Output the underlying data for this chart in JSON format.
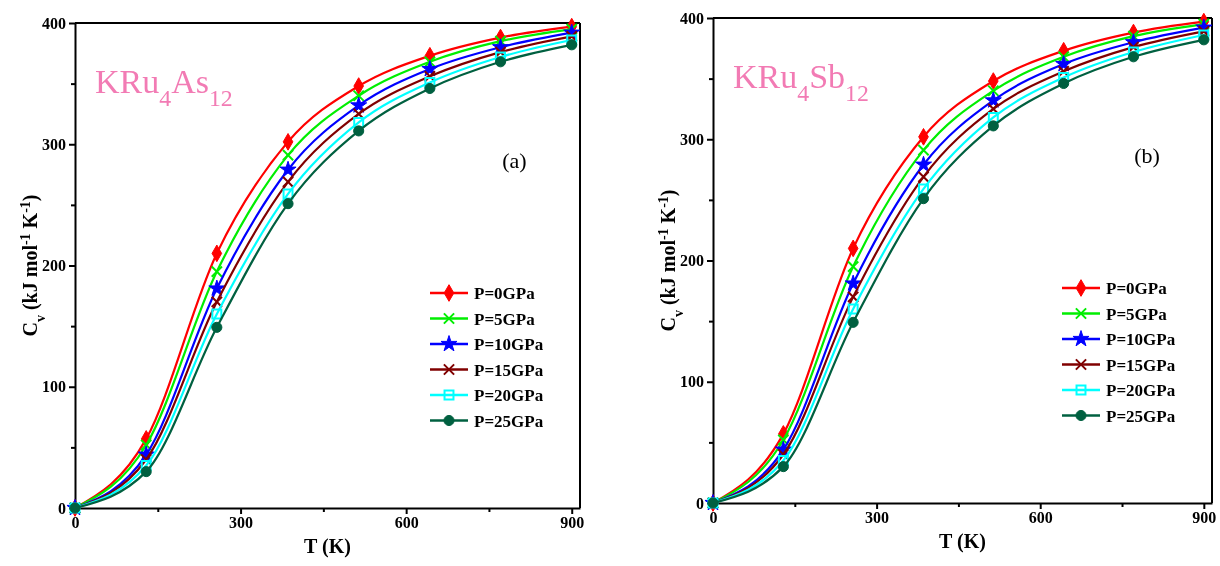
{
  "chart_data": [
    {
      "type": "line",
      "xlabel": "T (K)",
      "ylabel": "C$_{v}$ (kJ mol$^{-1}$ K$^{-1}$)",
      "annotations": [
        "KRu$_{4}$As$_{12}$",
        "(a)"
      ],
      "x": [
        0,
        129,
        257,
        386,
        514,
        643,
        771,
        900
      ],
      "series": [
        {
          "name": "P=0GPa",
          "color": "#ff0000",
          "marker": "diamond",
          "values": [
            0,
            57,
            210,
            302,
            348,
            373,
            388,
            397
          ]
        },
        {
          "name": "P=5GPa",
          "color": "#00ee00",
          "marker": "cross",
          "values": [
            0,
            52,
            195,
            291,
            340,
            368,
            385,
            395
          ]
        },
        {
          "name": "P=10GPa",
          "color": "#0000ff",
          "marker": "star",
          "values": [
            0,
            44,
            181,
            279,
            332,
            362,
            380,
            392
          ]
        },
        {
          "name": "P=15GPa",
          "color": "#800000",
          "marker": "cross",
          "values": [
            0,
            40,
            170,
            269,
            325,
            356,
            376,
            389
          ]
        },
        {
          "name": "P=20GPa",
          "color": "#00ffff",
          "marker": "square",
          "values": [
            0,
            35,
            160,
            259,
            318,
            351,
            372,
            386
          ]
        },
        {
          "name": "P=25GPa",
          "color": "#006040",
          "marker": "circle",
          "values": [
            0,
            30,
            149,
            251,
            311,
            346,
            368,
            382
          ]
        }
      ],
      "xlim": [
        0,
        915
      ],
      "ylim": [
        0,
        400
      ],
      "xticks": [
        0,
        {
          "value": 150,
          "label": null
        },
        300,
        {
          "value": 450,
          "label": null
        },
        600,
        {
          "value": 750,
          "label": null
        },
        900
      ],
      "yticks": [
        0,
        {
          "value": 50,
          "label": null
        },
        100,
        {
          "value": 150,
          "label": null
        },
        200,
        {
          "value": 250,
          "label": null
        },
        300,
        {
          "value": 350,
          "label": null
        },
        400
      ],
      "legend": "bottom right",
      "grid": false,
      "line_style": "solid"
    },
    {
      "type": "line",
      "xlabel": "T (K)",
      "ylabel": "C$_{v}$ (kJ mol$^{-1}$ K$^{-1}$)",
      "annotations": [
        "KRu$_{4}$Sb$_{12}$",
        "(b)"
      ],
      "x": [
        0,
        129,
        257,
        386,
        514,
        643,
        771,
        900
      ],
      "series": [
        {
          "name": "P=0GPa",
          "color": "#ff0000",
          "marker": "diamond",
          "values": [
            0,
            57,
            210,
            302,
            348,
            373,
            388,
            397
          ]
        },
        {
          "name": "P=5GPa",
          "color": "#00ee00",
          "marker": "cross",
          "values": [
            0,
            52,
            195,
            291,
            340,
            368,
            385,
            395
          ]
        },
        {
          "name": "P=10GPa",
          "color": "#0000ff",
          "marker": "star",
          "values": [
            0,
            44,
            181,
            279,
            332,
            362,
            380,
            392
          ]
        },
        {
          "name": "P=15GPa",
          "color": "#800000",
          "marker": "cross",
          "values": [
            0,
            40,
            170,
            269,
            325,
            356,
            376,
            389
          ]
        },
        {
          "name": "P=20GPa",
          "color": "#00ffff",
          "marker": "square",
          "values": [
            0,
            35,
            160,
            259,
            318,
            351,
            372,
            386
          ]
        },
        {
          "name": "P=25GPa",
          "color": "#006040",
          "marker": "circle",
          "values": [
            0,
            30,
            149,
            251,
            311,
            346,
            368,
            382
          ]
        }
      ],
      "xlim": [
        0,
        915
      ],
      "ylim": [
        0,
        400
      ],
      "xticks": [
        0,
        {
          "value": 150,
          "label": null
        },
        300,
        {
          "value": 450,
          "label": null
        },
        600,
        {
          "value": 750,
          "label": null
        },
        900
      ],
      "yticks": [
        0,
        {
          "value": 50,
          "label": null
        },
        100,
        {
          "value": 150,
          "label": null
        },
        200,
        {
          "value": 250,
          "label": null
        },
        300,
        {
          "value": 350,
          "label": null
        },
        400
      ],
      "legend": "bottom right",
      "grid": false,
      "line_style": "solid"
    }
  ]
}
